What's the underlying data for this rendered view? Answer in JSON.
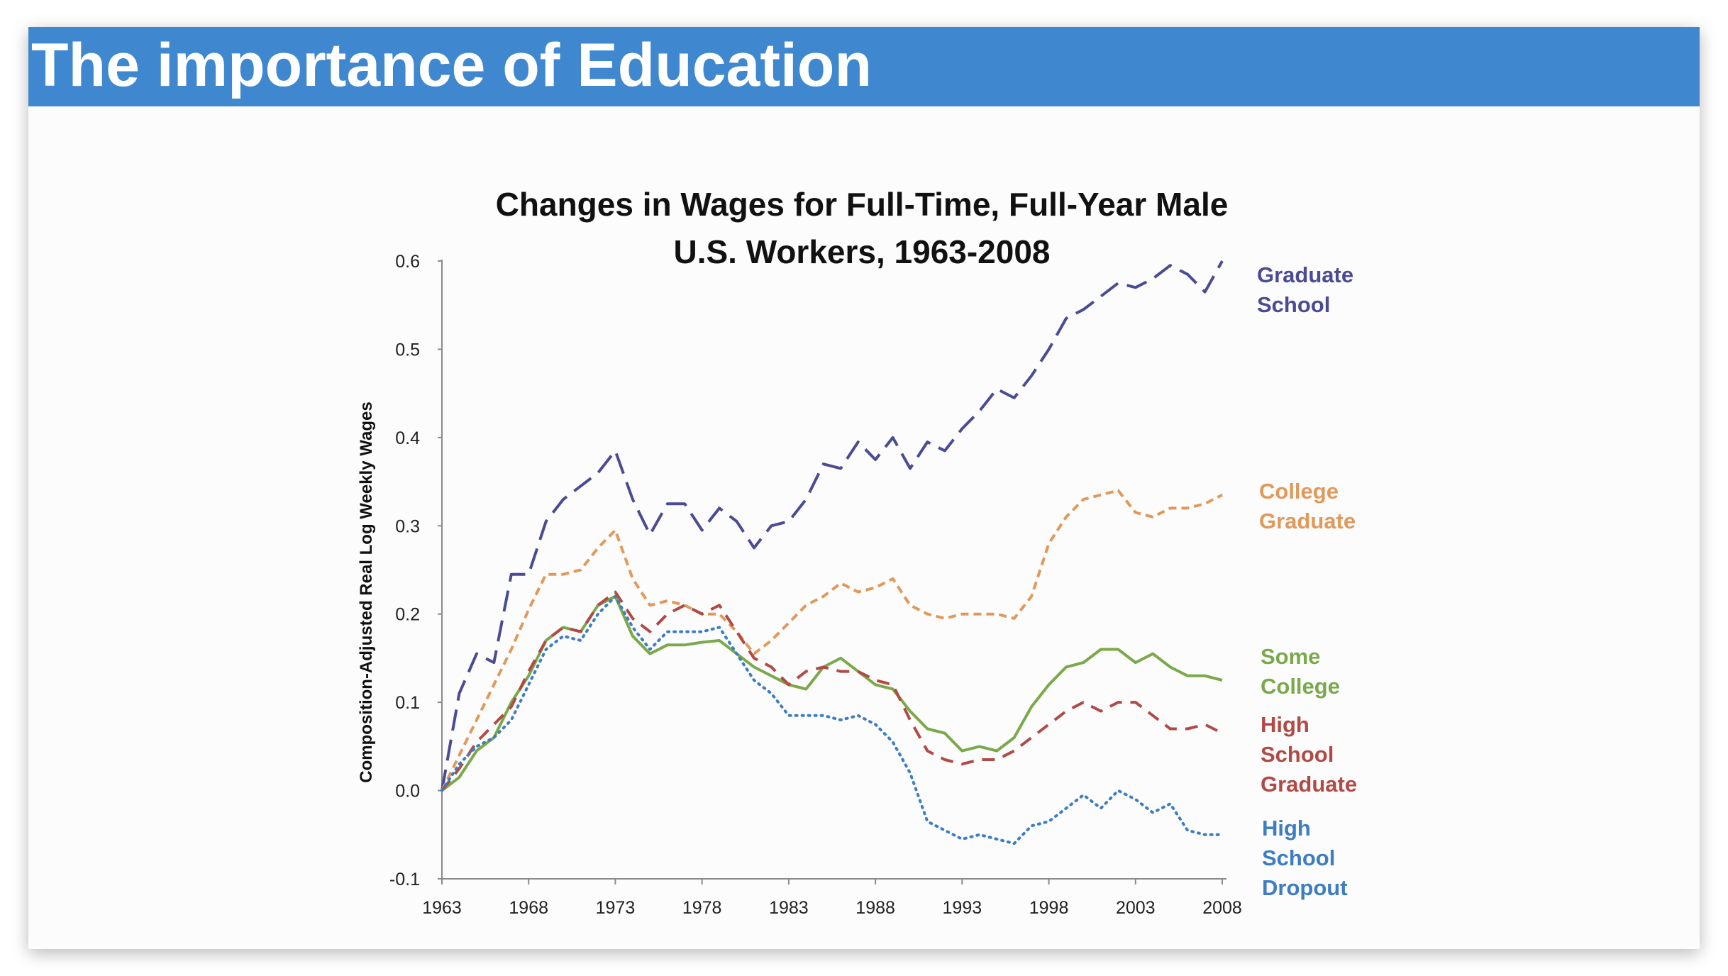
{
  "slide": {
    "title": "The importance of Education",
    "banner_color": "#3f88cf"
  },
  "chart_data": {
    "type": "line",
    "title_lines": [
      "Changes in Wages for Full-Time, Full-Year Male",
      "U.S. Workers, 1963-2008"
    ],
    "xlabel": "",
    "ylabel": "Composition-Adjusted Real Log Weekly Wages",
    "xlim": [
      1963,
      2008
    ],
    "ylim": [
      -0.1,
      0.6
    ],
    "x_ticks": [
      1963,
      1968,
      1973,
      1978,
      1983,
      1988,
      1993,
      1998,
      2003,
      2008
    ],
    "y_ticks": [
      {
        "value": -0.1,
        "label": "-0.1"
      },
      {
        "value": 0.0,
        "label": "0.0"
      },
      {
        "value": 0.1,
        "label": "0.1"
      },
      {
        "value": 0.2,
        "label": "0.2"
      },
      {
        "value": 0.3,
        "label": "0.3"
      },
      {
        "value": 0.4,
        "label": "0.4"
      },
      {
        "value": 0.5,
        "label": "0.5"
      },
      {
        "value": 0.6,
        "label": "0.6"
      }
    ],
    "x": [
      1963,
      1964,
      1965,
      1966,
      1967,
      1968,
      1969,
      1970,
      1971,
      1972,
      1973,
      1974,
      1975,
      1976,
      1977,
      1978,
      1979,
      1980,
      1981,
      1982,
      1983,
      1984,
      1985,
      1986,
      1987,
      1988,
      1989,
      1990,
      1991,
      1992,
      1993,
      1994,
      1995,
      1996,
      1997,
      1998,
      1999,
      2000,
      2001,
      2002,
      2003,
      2004,
      2005,
      2006,
      2007,
      2008
    ],
    "series": [
      {
        "name": "Graduate School",
        "label_lines": [
          "Graduate",
          "School"
        ],
        "color": "#4b4b94",
        "style": "long-dash",
        "values": [
          0.0,
          0.11,
          0.155,
          0.145,
          0.245,
          0.245,
          0.305,
          0.33,
          0.345,
          0.36,
          0.385,
          0.33,
          0.29,
          0.325,
          0.325,
          0.295,
          0.32,
          0.305,
          0.275,
          0.3,
          0.305,
          0.33,
          0.37,
          0.365,
          0.395,
          0.375,
          0.4,
          0.365,
          0.395,
          0.385,
          0.41,
          0.43,
          0.455,
          0.445,
          0.47,
          0.5,
          0.535,
          0.545,
          0.56,
          0.575,
          0.57,
          0.58,
          0.595,
          0.585,
          0.565,
          0.6
        ]
      },
      {
        "name": "College Graduate",
        "label_lines": [
          "College",
          "Graduate"
        ],
        "color": "#e0995a",
        "style": "short-dash",
        "values": [
          0.0,
          0.04,
          0.08,
          0.12,
          0.16,
          0.205,
          0.245,
          0.245,
          0.25,
          0.275,
          0.295,
          0.24,
          0.21,
          0.215,
          0.21,
          0.2,
          0.2,
          0.18,
          0.155,
          0.17,
          0.19,
          0.21,
          0.22,
          0.235,
          0.225,
          0.23,
          0.24,
          0.21,
          0.2,
          0.195,
          0.2,
          0.2,
          0.2,
          0.195,
          0.22,
          0.28,
          0.31,
          0.33,
          0.335,
          0.34,
          0.315,
          0.31,
          0.32,
          0.32,
          0.325,
          0.335
        ]
      },
      {
        "name": "Some College",
        "label_lines": [
          "Some",
          "College"
        ],
        "color": "#7aa84a",
        "style": "solid",
        "values": [
          0.0,
          0.015,
          0.045,
          0.06,
          0.1,
          0.13,
          0.17,
          0.185,
          0.18,
          0.21,
          0.22,
          0.175,
          0.155,
          0.165,
          0.165,
          0.168,
          0.17,
          0.155,
          0.14,
          0.13,
          0.12,
          0.115,
          0.14,
          0.15,
          0.135,
          0.12,
          0.115,
          0.09,
          0.07,
          0.065,
          0.045,
          0.05,
          0.045,
          0.06,
          0.095,
          0.12,
          0.14,
          0.145,
          0.16,
          0.16,
          0.145,
          0.155,
          0.14,
          0.13,
          0.13,
          0.125
        ]
      },
      {
        "name": "High School Graduate",
        "label_lines": [
          "High",
          "School",
          "Graduate"
        ],
        "color": "#b04a45",
        "style": "medium-dash",
        "values": [
          0.0,
          0.025,
          0.055,
          0.075,
          0.095,
          0.135,
          0.17,
          0.185,
          0.18,
          0.21,
          0.225,
          0.195,
          0.18,
          0.2,
          0.21,
          0.2,
          0.21,
          0.18,
          0.15,
          0.14,
          0.12,
          0.135,
          0.14,
          0.135,
          0.135,
          0.125,
          0.12,
          0.08,
          0.045,
          0.035,
          0.03,
          0.035,
          0.035,
          0.045,
          0.06,
          0.075,
          0.09,
          0.1,
          0.09,
          0.1,
          0.1,
          0.085,
          0.07,
          0.07,
          0.075,
          0.065
        ]
      },
      {
        "name": "High School Dropout",
        "label_lines": [
          "High",
          "School",
          "Dropout"
        ],
        "color": "#3d7dc1",
        "style": "dotted",
        "values": [
          0.0,
          0.03,
          0.05,
          0.06,
          0.08,
          0.12,
          0.16,
          0.175,
          0.17,
          0.2,
          0.22,
          0.185,
          0.16,
          0.18,
          0.18,
          0.18,
          0.185,
          0.155,
          0.125,
          0.11,
          0.085,
          0.085,
          0.085,
          0.08,
          0.085,
          0.075,
          0.055,
          0.02,
          -0.035,
          -0.045,
          -0.055,
          -0.05,
          -0.055,
          -0.06,
          -0.04,
          -0.035,
          -0.02,
          -0.005,
          -0.02,
          0.0,
          -0.01,
          -0.025,
          -0.015,
          -0.045,
          -0.05,
          -0.05
        ]
      }
    ]
  }
}
